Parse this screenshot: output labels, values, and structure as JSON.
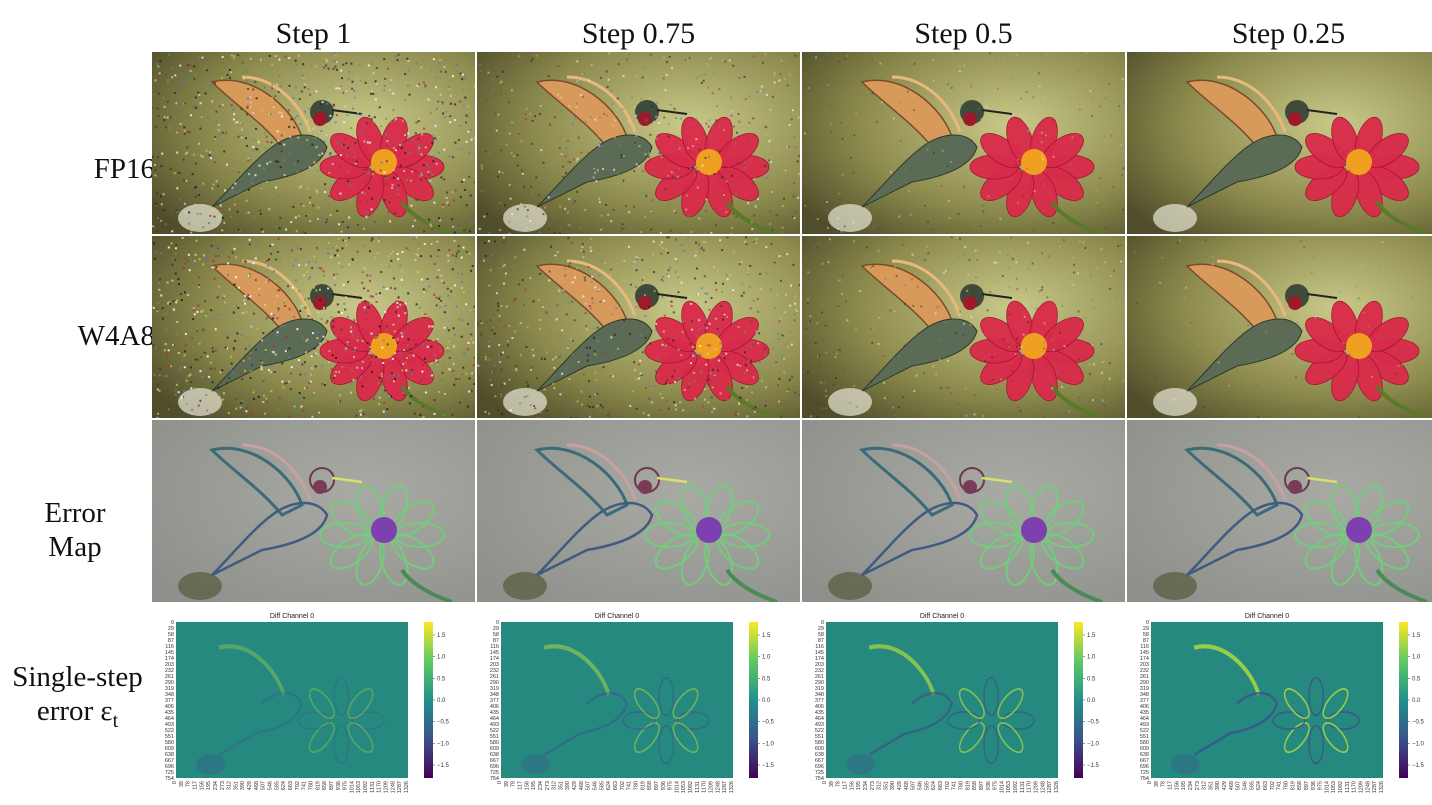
{
  "columns": [
    "Step 1",
    "Step 0.75",
    "Step 0.5",
    "Step 0.25"
  ],
  "rows": {
    "fp16": "FP16",
    "w4a8": "W4A8",
    "error_map_line1": "Error",
    "error_map_line2": "Map",
    "single_step_line1": "Single-step",
    "single_step_line2": "error ε"
  },
  "single_step_subscript": "t",
  "heatmap": {
    "title": "Diff Channel 0",
    "y_ticks": [
      "0",
      "29",
      "58",
      "87",
      "116",
      "145",
      "174",
      "203",
      "232",
      "261",
      "290",
      "319",
      "348",
      "377",
      "406",
      "435",
      "464",
      "493",
      "522",
      "551",
      "580",
      "609",
      "638",
      "667",
      "696",
      "725",
      "754"
    ],
    "x_ticks": [
      "0",
      "39",
      "78",
      "117",
      "156",
      "195",
      "234",
      "273",
      "312",
      "351",
      "390",
      "429",
      "468",
      "507",
      "546",
      "585",
      "624",
      "663",
      "702",
      "741",
      "780",
      "819",
      "858",
      "897",
      "936",
      "975",
      "1014",
      "1053",
      "1092",
      "1131",
      "1170",
      "1209",
      "1248",
      "1287",
      "1326"
    ],
    "colorbar_ticks": [
      "1.5",
      "1.0",
      "0.5",
      "0.0",
      "−0.5",
      "−1.0",
      "−1.5"
    ],
    "colorbar_values": [
      1.5,
      1.0,
      0.5,
      0.0,
      -0.5,
      -1.0,
      -1.5
    ],
    "colorbar_range": [
      -1.8,
      1.8
    ],
    "colormap": [
      "#440154",
      "#3b528b",
      "#21918c",
      "#5ec962",
      "#fde725"
    ],
    "background": "#26897f"
  },
  "noise_levels": [
    0.85,
    0.55,
    0.2,
    0.0
  ],
  "w4a8_noise_extra": [
    0.1,
    0.15,
    0.12,
    0.08
  ]
}
